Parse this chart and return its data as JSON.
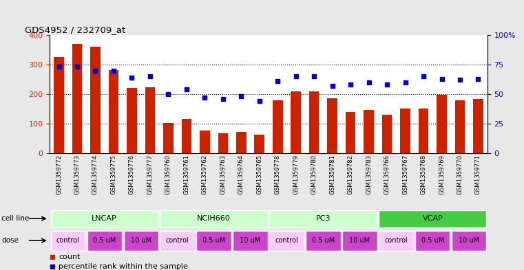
{
  "title": "GDS4952 / 232709_at",
  "samples": [
    "GSM1359772",
    "GSM1359773",
    "GSM1359774",
    "GSM1359775",
    "GSM1359776",
    "GSM1359777",
    "GSM1359760",
    "GSM1359761",
    "GSM1359762",
    "GSM1359763",
    "GSM1359764",
    "GSM1359765",
    "GSM1359778",
    "GSM1359779",
    "GSM1359780",
    "GSM1359781",
    "GSM1359782",
    "GSM1359783",
    "GSM1359766",
    "GSM1359767",
    "GSM1359768",
    "GSM1359769",
    "GSM1359770",
    "GSM1359771"
  ],
  "counts": [
    326,
    371,
    360,
    281,
    220,
    224,
    101,
    117,
    76,
    68,
    71,
    62,
    180,
    209,
    209,
    185,
    140,
    147,
    130,
    150,
    150,
    197,
    180,
    183
  ],
  "percentiles": [
    73,
    73,
    70,
    70,
    64,
    65,
    50,
    54,
    47,
    46,
    48,
    44,
    61,
    65,
    65,
    57,
    58,
    60,
    58,
    60,
    65,
    63,
    62,
    63
  ],
  "bar_color": "#cc2200",
  "dot_color": "#0000cc",
  "cell_lines": [
    {
      "label": "LNCAP",
      "start": 0,
      "end": 6,
      "color": "#ccffcc"
    },
    {
      "label": "NCIH660",
      "start": 6,
      "end": 12,
      "color": "#ccffcc"
    },
    {
      "label": "PC3",
      "start": 12,
      "end": 18,
      "color": "#ccffcc"
    },
    {
      "label": "VCAP",
      "start": 18,
      "end": 24,
      "color": "#44cc44"
    }
  ],
  "dose_blocks": [
    {
      "label": "control",
      "start": 0,
      "end": 2,
      "color": "#ffccff"
    },
    {
      "label": "0.5 uM",
      "start": 2,
      "end": 4,
      "color": "#cc44cc"
    },
    {
      "label": "10 uM",
      "start": 4,
      "end": 6,
      "color": "#cc44cc"
    },
    {
      "label": "control",
      "start": 6,
      "end": 8,
      "color": "#ffccff"
    },
    {
      "label": "0.5 uM",
      "start": 8,
      "end": 10,
      "color": "#cc44cc"
    },
    {
      "label": "10 uM",
      "start": 10,
      "end": 12,
      "color": "#cc44cc"
    },
    {
      "label": "control",
      "start": 12,
      "end": 14,
      "color": "#ffccff"
    },
    {
      "label": "0.5 uM",
      "start": 14,
      "end": 16,
      "color": "#cc44cc"
    },
    {
      "label": "10 uM",
      "start": 16,
      "end": 18,
      "color": "#cc44cc"
    },
    {
      "label": "control",
      "start": 18,
      "end": 20,
      "color": "#ffccff"
    },
    {
      "label": "0.5 uM",
      "start": 20,
      "end": 22,
      "color": "#cc44cc"
    },
    {
      "label": "10 uM",
      "start": 22,
      "end": 24,
      "color": "#cc44cc"
    }
  ],
  "ylim_left": [
    0,
    400
  ],
  "ylim_right": [
    0,
    100
  ],
  "yticks_left": [
    0,
    100,
    200,
    300,
    400
  ],
  "yticks_right": [
    0,
    25,
    50,
    75,
    100
  ],
  "yticklabels_right": [
    "0",
    "25",
    "50",
    "75",
    "100%"
  ],
  "bg_color": "#e8e8e8",
  "plot_bg": "#ffffff",
  "sample_area_bg": "#d8d8d8",
  "legend_count_color": "#cc2200",
  "legend_dot_color": "#0000cc"
}
